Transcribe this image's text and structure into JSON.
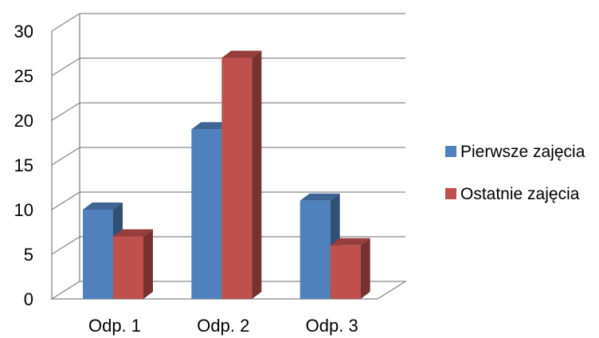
{
  "chart_data": {
    "type": "bar",
    "style": "3d-clustered-column",
    "categories": [
      "Odp. 1",
      "Odp. 2",
      "Odp. 3"
    ],
    "series": [
      {
        "name": "Pierwsze zajęcia",
        "values": [
          10,
          19,
          11
        ],
        "color": "#4F81BD"
      },
      {
        "name": "Ostatnie zajęcia",
        "values": [
          7,
          27,
          6
        ],
        "color": "#C0504D"
      }
    ],
    "y_ticks": [
      "0",
      "5",
      "10",
      "15",
      "20",
      "25",
      "30"
    ],
    "ylim": [
      0,
      30
    ],
    "grid": true,
    "legend_position": "right"
  }
}
